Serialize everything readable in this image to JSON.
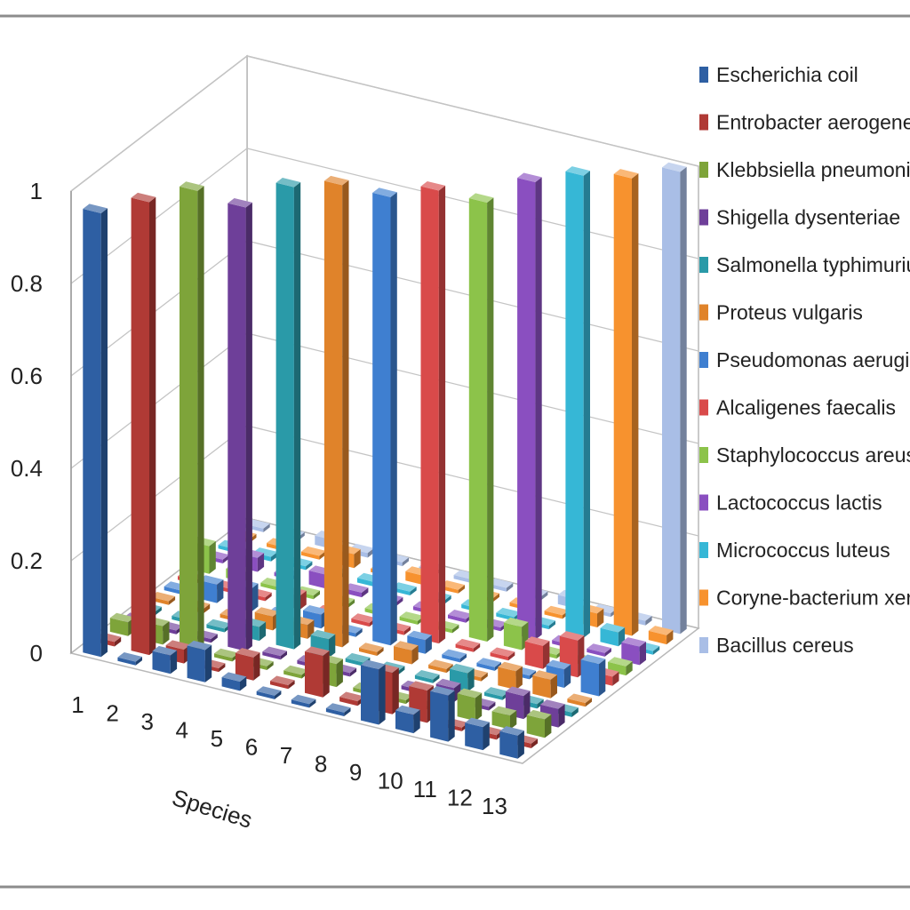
{
  "chart_data": {
    "type": "bar",
    "subtype": "3d-column",
    "xlabel": "Species",
    "ylabel": "",
    "ylim": [
      0,
      1
    ],
    "yticks": [
      "0",
      "0.2",
      "0.4",
      "0.6",
      "0.8",
      "1"
    ],
    "categories": [
      "1",
      "2",
      "3",
      "4",
      "5",
      "6",
      "7",
      "8",
      "9",
      "10",
      "11",
      "12",
      "13"
    ],
    "grid": true,
    "legend_position": "right",
    "series": [
      {
        "name": "Escherichia coil",
        "color": "#2e5fa3",
        "values": [
          0.96,
          0.0,
          0.04,
          0.07,
          0.02,
          0.0,
          0.0,
          0.0,
          0.12,
          0.04,
          0.1,
          0.05,
          0.05
        ]
      },
      {
        "name": "Entrobacter aerogenes",
        "color": "#b03a35",
        "values": [
          0.01,
          0.98,
          0.03,
          0.0,
          0.05,
          0.0,
          0.09,
          0.01,
          0.09,
          0.07,
          0.0,
          0.01,
          0.01
        ]
      },
      {
        "name": "Klebbsiella pneumoniae",
        "color": "#7ea43a",
        "values": [
          0.03,
          0.04,
          1.0,
          0.0,
          0.0,
          0.0,
          0.05,
          0.0,
          0.0,
          0.0,
          0.05,
          0.03,
          0.04
        ]
      },
      {
        "name": "Shigella dysenteriae",
        "color": "#6e3f99",
        "values": [
          0.0,
          0.0,
          0.0,
          0.96,
          0.0,
          0.0,
          0.0,
          0.0,
          0.0,
          0.03,
          0.0,
          0.05,
          0.04
        ]
      },
      {
        "name": "Salmonella typhimurium",
        "color": "#2a9aa8",
        "values": [
          0.0,
          0.0,
          0.0,
          0.03,
          1.0,
          0.04,
          0.0,
          0.0,
          0.0,
          0.04,
          0.0,
          0.01,
          0.01
        ]
      },
      {
        "name": "Proteus vulgaris",
        "color": "#e0832a",
        "values": [
          0.0,
          0.01,
          0.0,
          0.03,
          0.03,
          1.0,
          0.0,
          0.03,
          0.0,
          0.0,
          0.04,
          0.04,
          0.0
        ]
      },
      {
        "name": "Pseudomonas aeruginosa",
        "color": "#3f7fd0",
        "values": [
          0.0,
          0.04,
          0.05,
          0.0,
          0.03,
          0.0,
          0.97,
          0.03,
          0.0,
          0.0,
          0.0,
          0.04,
          0.07
        ]
      },
      {
        "name": "Alcaligenes faecalis",
        "color": "#d94a4a",
        "values": [
          0.0,
          0.0,
          0.0,
          0.03,
          0.0,
          0.0,
          0.0,
          0.98,
          0.0,
          0.0,
          0.05,
          0.08,
          0.02
        ]
      },
      {
        "name": "Staphylococcus areus",
        "color": "#8cc34a",
        "values": [
          0.06,
          0.02,
          0.0,
          0.0,
          0.0,
          0.0,
          0.0,
          0.0,
          0.95,
          0.05,
          0.0,
          0.0,
          0.02
        ]
      },
      {
        "name": "Lactococcus lactis",
        "color": "#8a4fc0",
        "values": [
          0.0,
          0.03,
          0.0,
          0.03,
          0.01,
          0.0,
          0.0,
          0.0,
          0.0,
          0.99,
          0.0,
          0.0,
          0.04
        ]
      },
      {
        "name": "Micrococcus luteus",
        "color": "#36b7d6",
        "values": [
          0.0,
          0.01,
          0.0,
          0.0,
          0.01,
          0.0,
          0.0,
          0.0,
          0.0,
          0.0,
          1.0,
          0.03,
          0.0
        ]
      },
      {
        "name": "Coryne-bacterium xerosis",
        "color": "#f7922e",
        "values": [
          0.0,
          0.0,
          0.0,
          0.03,
          0.0,
          0.02,
          0.0,
          0.0,
          0.0,
          0.0,
          0.03,
          0.99,
          0.02
        ]
      },
      {
        "name": "Bacillus cereus",
        "color": "#a9bee6",
        "values": [
          0.0,
          0.0,
          0.02,
          0.01,
          0.0,
          0.0,
          0.0,
          0.0,
          0.0,
          0.02,
          0.0,
          0.01,
          1.0
        ]
      }
    ]
  }
}
